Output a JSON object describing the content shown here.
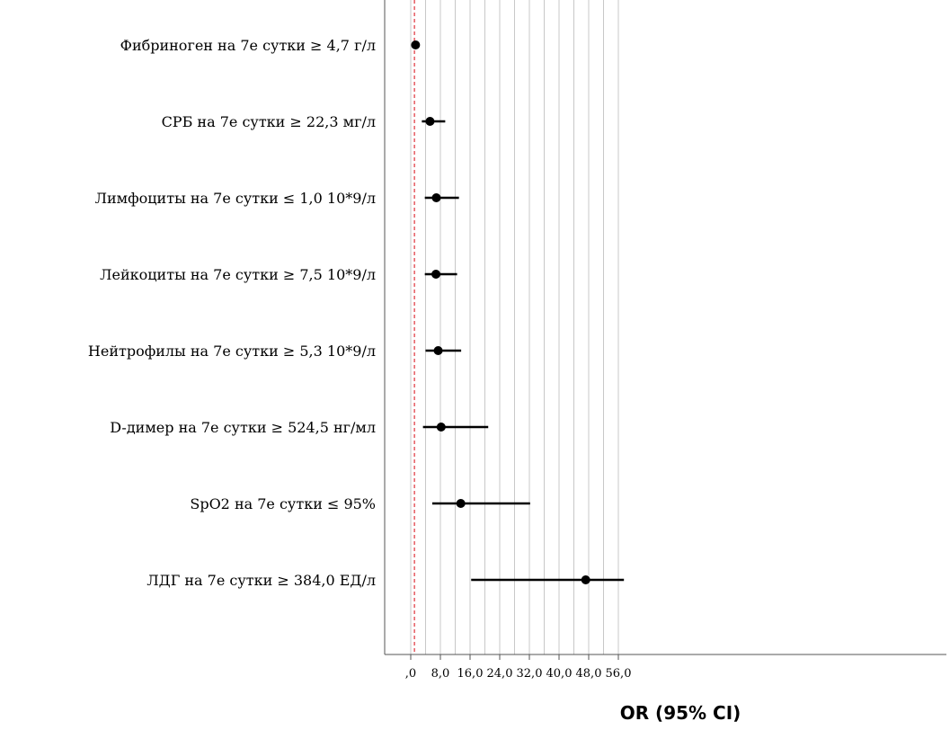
{
  "chart_data": {
    "type": "scatter",
    "subtype": "forest-plot",
    "title": "",
    "xlabel": "OR (95% CI)",
    "ylabel": "",
    "xlim": [
      -4,
      57.5
    ],
    "x_ticks": [
      0,
      8,
      16,
      24,
      32,
      40,
      48,
      56
    ],
    "x_tick_labels": [
      ",0",
      "8,0",
      "16,0",
      "24,0",
      "32,0",
      "40,0",
      "48,0",
      "56,0"
    ],
    "grid": "vertical, every 4.0",
    "reference_line": {
      "x": 1,
      "style": "dashed",
      "color": "#e0313a"
    },
    "categories": [
      "Фибриноген на 7е сутки ≥ 4,7 г/л",
      "СРБ на 7е сутки ≥ 22,3 мг/л",
      "Лимфоциты на 7е сутки ≤ 1,0 10*9/л",
      "Лейкоциты на 7е сутки  ≥ 7,5 10*9/л",
      "Нейтрофилы на 7е сутки ≥ 5,3 10*9/л",
      "D-димер на 7е сутки ≥ 524,5 нг/мл",
      "SpO2 на 7е сутки ≤ 95%",
      "ЛДГ на 7е сутки ≥ 384,0 ЕД/л"
    ],
    "series": [
      {
        "or": [
          1.3,
          5.2,
          6.9,
          6.8,
          7.4,
          8.2,
          13.5,
          47.2
        ],
        "ci_lower": [
          0.9,
          3.0,
          3.8,
          3.8,
          4.0,
          3.3,
          5.8,
          16.3
        ],
        "ci_upper": [
          2.1,
          9.3,
          13.0,
          12.5,
          13.6,
          20.9,
          32.2,
          57.5
        ]
      }
    ],
    "colors": {
      "marker": "#000000",
      "grid": "#c8c8c8",
      "axis": "#555555"
    }
  }
}
